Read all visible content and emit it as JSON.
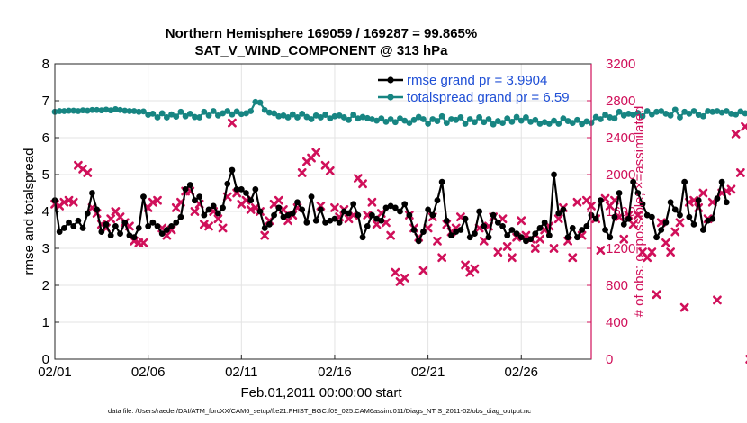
{
  "chart_data": {
    "type": "line",
    "title": "Northern Hemisphere 169059 / 169287 = 99.865%",
    "subtitle": "SAT_V_WIND_COMPONENT @ 313 hPa",
    "xlabel": "Feb.01,2011 00:00:00 start",
    "ylabel": "rmse and totalspread",
    "y2label": "# of obs: o=possible; ×=assimilated",
    "footnote": "data file: /Users/raeder/DAI/ATM_forcXX/CAM6_setup/f.e21.FHIST_BGC.f09_025.CAM6assim.011/Diags_NTrS_2011-02/obs_diag_output.nc",
    "x_ticks": [
      "02/01",
      "02/06",
      "02/11",
      "02/16",
      "02/21",
      "02/26"
    ],
    "x_tick_days": [
      0,
      5,
      10,
      15,
      20,
      25
    ],
    "xlim": [
      0,
      28.75
    ],
    "ylim": [
      0,
      8
    ],
    "y_ticks": [
      "0",
      "1",
      "2",
      "3",
      "4",
      "5",
      "6",
      "7",
      "8"
    ],
    "y2lim": [
      0,
      3200
    ],
    "y2_ticks": [
      "0",
      "400",
      "800",
      "1200",
      "1600",
      "2000",
      "2400",
      "2800",
      "3200"
    ],
    "grid": true,
    "legend_position": "top-right",
    "colors": {
      "rmse": "#000000",
      "spread": "#178582",
      "obs": "#d0105a",
      "legend_text": "#1f4fd6"
    },
    "x_start_day": 0,
    "x_step_days": 0.25,
    "series": [
      {
        "name": "rmse",
        "legend": "rmse grand pr = 3.9904",
        "values": [
          4.3,
          3.45,
          3.55,
          3.7,
          3.6,
          3.75,
          3.55,
          3.95,
          4.5,
          4.05,
          3.45,
          3.65,
          3.35,
          3.6,
          3.4,
          3.7,
          3.35,
          3.3,
          3.55,
          4.4,
          3.6,
          3.7,
          3.6,
          3.4,
          3.5,
          3.6,
          3.7,
          3.85,
          4.6,
          4.72,
          4.3,
          4.4,
          3.9,
          4.05,
          4.15,
          3.95,
          4.1,
          4.75,
          5.12,
          4.6,
          4.6,
          4.5,
          4.3,
          4.6,
          4.0,
          3.55,
          3.65,
          3.9,
          4.1,
          3.85,
          3.9,
          3.95,
          4.25,
          4.05,
          3.7,
          4.4,
          3.75,
          4.05,
          3.7,
          3.75,
          3.8,
          3.7,
          4.0,
          3.95,
          4.2,
          3.9,
          3.3,
          3.6,
          3.9,
          3.8,
          3.75,
          4.1,
          4.15,
          4.1,
          4.0,
          4.2,
          3.9,
          3.5,
          3.2,
          3.45,
          4.05,
          3.9,
          4.3,
          4.8,
          3.75,
          3.35,
          3.45,
          3.5,
          3.8,
          3.3,
          3.4,
          4.0,
          3.6,
          3.3,
          3.9,
          3.7,
          3.6,
          3.35,
          3.5,
          3.4,
          3.3,
          3.2,
          3.25,
          3.4,
          3.55,
          3.7,
          3.35,
          5.0,
          3.95,
          4.05,
          3.3,
          3.55,
          3.3,
          3.5,
          3.6,
          3.9,
          3.8,
          4.3,
          3.5,
          3.3,
          3.85,
          4.5,
          3.65,
          3.8,
          4.8,
          4.5,
          4.2,
          3.9,
          3.85,
          3.3,
          3.5,
          3.7,
          4.25,
          4.05,
          3.9,
          4.8,
          3.85,
          3.65,
          4.3,
          3.5,
          3.75,
          3.8,
          4.35,
          4.8,
          4.25
        ]
      },
      {
        "name": "totalspread",
        "legend": "totalspread grand pr = 6.59",
        "values": [
          6.7,
          6.72,
          6.72,
          6.73,
          6.73,
          6.72,
          6.74,
          6.73,
          6.75,
          6.75,
          6.74,
          6.76,
          6.74,
          6.77,
          6.75,
          6.73,
          6.72,
          6.72,
          6.7,
          6.71,
          6.62,
          6.65,
          6.55,
          6.66,
          6.55,
          6.63,
          6.57,
          6.7,
          6.58,
          6.65,
          6.56,
          6.55,
          6.7,
          6.6,
          6.72,
          6.6,
          6.66,
          6.72,
          6.63,
          6.71,
          6.64,
          6.66,
          6.72,
          6.97,
          6.95,
          6.75,
          6.68,
          6.66,
          6.58,
          6.6,
          6.55,
          6.63,
          6.55,
          6.65,
          6.56,
          6.5,
          6.6,
          6.55,
          6.62,
          6.52,
          6.58,
          6.6,
          6.55,
          6.48,
          6.62,
          6.52,
          6.56,
          6.53,
          6.5,
          6.46,
          6.52,
          6.43,
          6.5,
          6.42,
          6.52,
          6.46,
          6.4,
          6.48,
          6.56,
          6.5,
          6.38,
          6.5,
          6.45,
          6.58,
          6.4,
          6.5,
          6.48,
          6.55,
          6.38,
          6.5,
          6.42,
          6.55,
          6.42,
          6.5,
          6.36,
          6.45,
          6.4,
          6.52,
          6.43,
          6.56,
          6.46,
          6.55,
          6.43,
          6.48,
          6.38,
          6.42,
          6.38,
          6.46,
          6.38,
          6.52,
          6.45,
          6.4,
          6.48,
          6.37,
          6.44,
          6.4,
          6.56,
          6.5,
          6.62,
          6.55,
          6.52,
          6.7,
          6.6,
          6.65,
          6.62,
          6.67,
          6.58,
          6.72,
          6.63,
          6.7,
          6.72,
          6.65,
          6.6,
          6.76,
          6.55,
          6.7,
          6.65,
          6.72,
          6.62,
          6.58,
          6.72,
          6.7,
          6.72,
          6.68,
          6.72,
          6.65,
          6.63,
          6.71,
          6.66
        ]
      },
      {
        "name": "obs_assimilated",
        "marker": "x",
        "values": [
          1680,
          1660,
          1700,
          1720,
          1700,
          2100,
          2060,
          2020,
          1640,
          1580,
          1460,
          1420,
          1520,
          1600,
          1540,
          1480,
          1440,
          1280,
          1260,
          1260,
          1640,
          1700,
          1720,
          1420,
          1340,
          1400,
          1640,
          1700,
          1820,
          1820,
          1600,
          1680,
          1460,
          1440,
          1600,
          1520,
          1420,
          1760,
          2560,
          1800,
          1680,
          1720,
          1620,
          1640,
          1600,
          1340,
          1500,
          1680,
          1720,
          1620,
          1500,
          1560,
          1640,
          2020,
          2140,
          2180,
          2240,
          1660,
          2100,
          2040,
          1640,
          1540,
          1620,
          1520,
          1560,
          1960,
          1900,
          1560,
          1700,
          1460,
          1580,
          1480,
          1340,
          940,
          840,
          880,
          1560,
          1420,
          1320,
          960,
          1420,
          1540,
          1280,
          1100,
          1460,
          1380,
          1420,
          1540,
          1020,
          940,
          980,
          1420,
          1280,
          1440,
          1540,
          1160,
          1520,
          1220,
          1100,
          1320,
          1500,
          1340,
          1300,
          1200,
          1300,
          1400,
          1440,
          1200,
          1520,
          1640,
          1280,
          1100,
          1700,
          1340,
          1720,
          1660,
          1520,
          1180,
          1740,
          1660,
          1720,
          1540,
          1300,
          1560,
          1460,
          1560,
          1160,
          1100,
          1160,
          700,
          1480,
          1260,
          1160,
          1380,
          1480,
          560,
          1700,
          1720,
          1640,
          1800,
          1520,
          1700,
          640,
          1800,
          1820,
          1840,
          2440,
          2020,
          2520,
          0
        ]
      }
    ]
  }
}
